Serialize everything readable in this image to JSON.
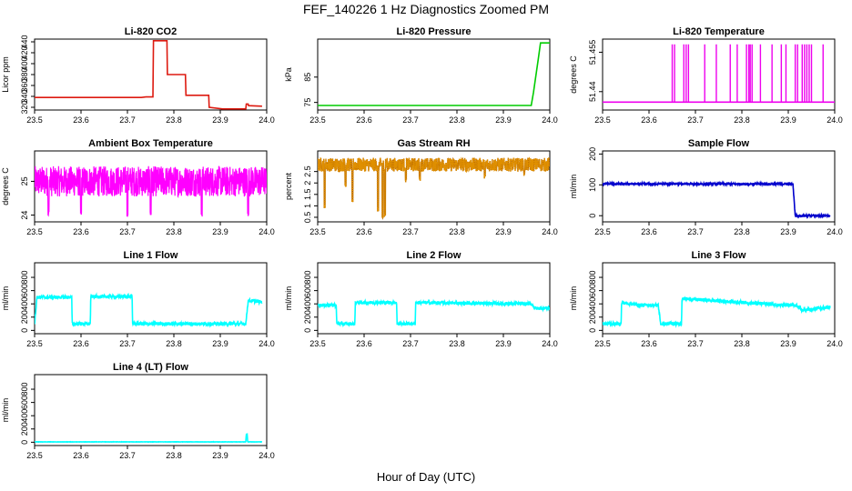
{
  "figure": {
    "title": "FEF_140226  1 Hz Diagnostics Zoomed PM",
    "xlabel": "Hour of Day (UTC)"
  },
  "chart_data": [
    {
      "type": "line",
      "title": "Li-820 CO2",
      "xlabel": "",
      "ylabel": "Licor ppm",
      "xlim": [
        23.5,
        24.0
      ],
      "ylim": [
        315,
        445
      ],
      "xticks": [
        "23.5",
        "23.6",
        "23.7",
        "23.8",
        "23.9",
        "24.0"
      ],
      "yticks": [
        320,
        340,
        360,
        380,
        400,
        420,
        440
      ],
      "color": "#dd1a10",
      "series": [
        {
          "x": [
            23.5,
            23.73,
            23.74,
            23.755,
            23.756,
            23.785,
            23.786,
            23.825,
            23.826,
            23.875,
            23.876,
            23.905,
            23.93,
            23.955,
            23.956,
            23.96,
            23.961,
            23.99
          ],
          "y": [
            338,
            338,
            339,
            339,
            442,
            442,
            380,
            380,
            342,
            342,
            320,
            317,
            317,
            317,
            326,
            326,
            323,
            322
          ]
        }
      ]
    },
    {
      "type": "line",
      "title": "Li-820 Pressure",
      "xlabel": "",
      "ylabel": "kPa",
      "xlim": [
        23.5,
        24.0
      ],
      "ylim": [
        72,
        100
      ],
      "xticks": [
        "23.5",
        "23.6",
        "23.7",
        "23.8",
        "23.9",
        "24.0"
      ],
      "yticks": [
        75,
        85
      ],
      "color": "#00cc00",
      "series": [
        {
          "x": [
            23.5,
            23.95,
            23.96,
            23.965,
            23.975,
            23.98,
            24.0
          ],
          "y": [
            73.8,
            73.8,
            73.8,
            79,
            92,
            98.5,
            98.5
          ]
        }
      ]
    },
    {
      "type": "line",
      "title": "Li-820 Temperature",
      "xlabel": "",
      "ylabel": "degrees C",
      "xlim": [
        23.5,
        24.0
      ],
      "ylim": [
        51.433,
        51.46
      ],
      "xticks": [
        "23.5",
        "23.6",
        "23.7",
        "23.8",
        "23.9",
        "24.0"
      ],
      "yticks": [
        51.44,
        51.455
      ],
      "color": "#ee00ee",
      "baseline": 51.436,
      "spike_top": 51.458,
      "spike_x": [
        23.65,
        23.655,
        23.675,
        23.68,
        23.685,
        23.72,
        23.745,
        23.775,
        23.79,
        23.81,
        23.815,
        23.818,
        23.822,
        23.84,
        23.865,
        23.885,
        23.895,
        23.915,
        23.92,
        23.93,
        23.935,
        23.94,
        23.945,
        23.95,
        23.975
      ]
    },
    {
      "type": "line",
      "title": "Ambient Box Temperature",
      "xlabel": "",
      "ylabel": "degrees C",
      "xlim": [
        23.5,
        24.0
      ],
      "ylim": [
        23.8,
        25.9
      ],
      "xticks": [
        "23.5",
        "23.6",
        "23.7",
        "23.8",
        "23.9",
        "24.0"
      ],
      "yticks": [
        24.0,
        25.0
      ],
      "color": "#ff00ff",
      "noise": {
        "center": 25.0,
        "amplitude": 0.45,
        "dip_x": [
          23.53,
          23.6,
          23.7,
          23.75,
          23.86,
          23.96
        ],
        "dip_min": 23.95
      }
    },
    {
      "type": "scatter",
      "title": "Gas Stream RH",
      "xlabel": "",
      "ylabel": "percent",
      "xlim": [
        23.5,
        24.0
      ],
      "ylim": [
        0.3,
        3.4
      ],
      "xticks": [
        "23.5",
        "23.6",
        "23.7",
        "23.8",
        "23.9",
        "24.0"
      ],
      "yticks": [
        0.5,
        1.0,
        1.5,
        2.0,
        2.5
      ],
      "color": "#e09000",
      "noise": {
        "center": 2.8,
        "amplitude": 0.3,
        "dip_x": [
          23.515,
          23.56,
          23.575,
          23.63,
          23.64,
          23.645,
          23.69,
          23.72,
          23.86,
          23.945
        ],
        "dip_min": [
          0.9,
          1.8,
          1.1,
          0.7,
          0.4,
          0.5,
          2.0,
          2.1,
          2.2,
          2.3
        ]
      }
    },
    {
      "type": "line",
      "title": "Sample Flow",
      "xlabel": "",
      "ylabel": "ml/min",
      "xlim": [
        23.5,
        24.0
      ],
      "ylim": [
        -20,
        210
      ],
      "xticks": [
        "23.5",
        "23.6",
        "23.7",
        "23.8",
        "23.9",
        "24.0"
      ],
      "yticks": [
        0,
        100,
        200
      ],
      "color": "#0000cc",
      "series": [
        {
          "x": [
            23.5,
            23.91,
            23.915,
            23.92,
            23.99
          ],
          "y": [
            103,
            103,
            0,
            0,
            0
          ]
        }
      ],
      "noise_amplitude": 3
    },
    {
      "type": "line",
      "title": "Line 1 Flow",
      "xlabel": "",
      "ylabel": "ml/min",
      "xlim": [
        23.5,
        24.0
      ],
      "ylim": [
        -50,
        1020
      ],
      "xticks": [
        "23.5",
        "23.6",
        "23.7",
        "23.8",
        "23.9",
        "24.0"
      ],
      "yticks": [
        0,
        200,
        400,
        600,
        800
      ],
      "color": "#00ffff",
      "series": [
        {
          "x": [
            23.5,
            23.505,
            23.58,
            23.581,
            23.62,
            23.621,
            23.71,
            23.711,
            23.955,
            23.96,
            23.99
          ],
          "y": [
            100,
            500,
            500,
            100,
            100,
            510,
            510,
            100,
            100,
            450,
            430
          ]
        }
      ],
      "noise_amplitude": 25
    },
    {
      "type": "line",
      "title": "Line 2 Flow",
      "xlabel": "",
      "ylabel": "ml/min",
      "xlim": [
        23.5,
        24.0
      ],
      "ylim": [
        -50,
        1020
      ],
      "xticks": [
        "23.5",
        "23.6",
        "23.7",
        "23.8",
        "23.9",
        "24.0"
      ],
      "yticks": [
        0,
        200,
        400,
        600,
        800
      ],
      "color": "#00ffff",
      "series": [
        {
          "x": [
            23.5,
            23.54,
            23.541,
            23.58,
            23.581,
            23.67,
            23.671,
            23.71,
            23.711,
            23.96,
            23.97,
            24.0
          ],
          "y": [
            380,
            380,
            100,
            100,
            420,
            420,
            100,
            100,
            420,
            400,
            330,
            340
          ]
        }
      ],
      "noise_amplitude": 25
    },
    {
      "type": "line",
      "title": "Line 3 Flow",
      "xlabel": "",
      "ylabel": "ml/min",
      "xlim": [
        23.5,
        24.0
      ],
      "ylim": [
        -50,
        1020
      ],
      "xticks": [
        "23.5",
        "23.6",
        "23.7",
        "23.8",
        "23.9",
        "24.0"
      ],
      "yticks": [
        0,
        200,
        400,
        600,
        800
      ],
      "color": "#00ffff",
      "series": [
        {
          "x": [
            23.5,
            23.54,
            23.541,
            23.58,
            23.585,
            23.62,
            23.625,
            23.67,
            23.671,
            23.92,
            23.93,
            23.99
          ],
          "y": [
            100,
            100,
            420,
            380,
            380,
            380,
            100,
            100,
            480,
            370,
            300,
            350
          ]
        }
      ],
      "noise_amplitude": 25
    },
    {
      "type": "line",
      "title": "Line 4 (LT) Flow",
      "xlabel": "",
      "ylabel": "ml/min",
      "xlim": [
        23.5,
        24.0
      ],
      "ylim": [
        -50,
        1020
      ],
      "xticks": [
        "23.5",
        "23.6",
        "23.7",
        "23.8",
        "23.9",
        "24.0"
      ],
      "yticks": [
        0,
        200,
        400,
        600,
        800
      ],
      "color": "#00ffff",
      "series": [
        {
          "x": [
            23.5,
            23.955,
            23.956,
            23.958,
            23.959,
            23.99
          ],
          "y": [
            5,
            5,
            120,
            120,
            5,
            5
          ]
        }
      ],
      "noise_amplitude": 2
    }
  ]
}
